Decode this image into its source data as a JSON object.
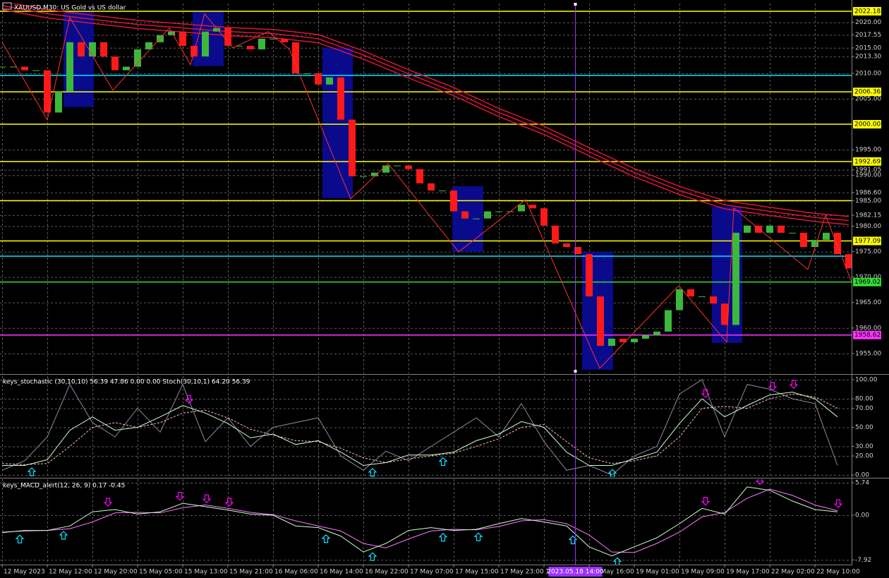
{
  "chart_data": [
    {
      "type": "candlestick",
      "title": "XAUUSD,M30: US Gold vs US dollar",
      "x": [
        0,
        4,
        8,
        12,
        16,
        20,
        24,
        28,
        32,
        36,
        40,
        44,
        48,
        52,
        56,
        60,
        64,
        68,
        72,
        76,
        80,
        84,
        88,
        92,
        96,
        100,
        104,
        108,
        112,
        116,
        120,
        124,
        128,
        132,
        136,
        140,
        144,
        148,
        152,
        156,
        160,
        164,
        168,
        172,
        176,
        180,
        184,
        188,
        192,
        196,
        200,
        204,
        208,
        212,
        216,
        220,
        224,
        228,
        232,
        236,
        240,
        244,
        248,
        252,
        256,
        260,
        264,
        268,
        272,
        276,
        280,
        284,
        288,
        292,
        296,
        300
      ],
      "values": [
        2011.3,
        2011.3,
        2010.6,
        2010.6,
        2002.3,
        2006.4,
        2016.1,
        2013.3,
        2016.1,
        2013.3,
        2010.6,
        2011.3,
        2014.7,
        2016.1,
        2017.5,
        2018.2,
        2015.4,
        2013.3,
        2018.2,
        2018.9,
        2015.4,
        2015.4,
        2014.7,
        2016.8,
        2016.8,
        2016.1,
        2010.0,
        2010.0,
        2007.8,
        2009.2,
        2000.9,
        1989.8,
        1989.8,
        1990.5,
        1991.9,
        1991.9,
        1991.2,
        1988.4,
        1987.0,
        1987.0,
        1982.9,
        1981.5,
        1981.5,
        1982.9,
        1982.9,
        1982.9,
        1984.2,
        1983.5,
        1980.1,
        1976.6,
        1975.9,
        1974.5,
        1966.2,
        1956.5,
        1957.9,
        1957.2,
        1957.9,
        1958.6,
        1959.3,
        1963.5,
        1967.6,
        1966.2,
        1966.2,
        1964.8,
        1960.6,
        1978.7,
        1980.1,
        1978.7,
        1980.1,
        1978.7,
        1978.7,
        1975.9,
        1977.3,
        1978.7,
        1974.5,
        1971.7
      ],
      "up_color": "#3cb83c",
      "down_color": "#ff1a1a",
      "ma_series": [
        {
          "color": "#dc143c",
          "x": [
            0,
            16,
            32,
            48,
            64,
            80,
            96,
            112,
            128,
            144,
            160,
            176,
            192,
            208,
            224,
            240,
            256,
            272,
            288,
            300
          ],
          "values": [
            2024.1,
            2022.5,
            2021.4,
            2020.4,
            2019.7,
            2019.0,
            2018.6,
            2017.6,
            2014.4,
            2010.7,
            2007.2,
            2003.1,
            1999.6,
            1995.4,
            1991.3,
            1987.8,
            1985.0,
            1983.7,
            1982.5,
            1981.9
          ]
        },
        {
          "color": "#dc143c",
          "x": [
            0,
            16,
            32,
            48,
            64,
            80,
            96,
            112,
            128,
            144,
            160,
            176,
            192,
            208,
            224,
            240,
            256,
            272,
            288,
            300
          ],
          "values": [
            2023.3,
            2021.7,
            2020.6,
            2019.6,
            2018.9,
            2018.2,
            2017.8,
            2016.8,
            2013.6,
            2009.9,
            2006.4,
            2002.3,
            1998.8,
            1994.6,
            1990.5,
            1987.0,
            1984.2,
            1982.9,
            1981.7,
            1981.1
          ]
        },
        {
          "color": "#dc143c",
          "x": [
            0,
            16,
            32,
            48,
            64,
            80,
            96,
            112,
            128,
            144,
            160,
            176,
            192,
            208,
            224,
            240,
            256,
            272,
            288,
            300
          ],
          "values": [
            2022.5,
            2020.9,
            2019.8,
            2018.8,
            2018.1,
            2017.4,
            2017.0,
            2016.0,
            2012.8,
            2009.1,
            2005.6,
            2001.5,
            1998.0,
            1993.8,
            1989.7,
            1986.2,
            1983.4,
            1982.1,
            1980.9,
            1980.3
          ]
        }
      ],
      "zigzag": {
        "color": "#ff3030",
        "x": [
          0,
          16,
          24,
          39.25,
          59.25,
          66.75,
          71.75,
          81.75,
          94.25,
          101.75,
          123.5,
          136.75,
          161.75,
          185.5,
          211.75,
          239.75,
          256.75,
          259.25,
          285.5,
          291.75,
          301
        ],
        "values": [
          2016.12,
          2000.87,
          2020.97,
          2006.69,
          2018.89,
          2011.68,
          2021.66,
          2015.01,
          2018.2,
          2014.73,
          1985.35,
          1992.28,
          1974.95,
          1985.21,
          1952.09,
          1968.3,
          1957.21,
          1983.55,
          1971.49,
          1982.16,
          1969.0
        ]
      },
      "zones": {
        "color": "#0a0a8c",
        "items": [
          {
            "x": [
              21.75,
              32.5
            ],
            "y": [
              2022.08,
              2003.37
            ]
          },
          {
            "x": [
              67.5,
              78.5
            ],
            "y": [
              2022.08,
              2011.41
            ]
          },
          {
            "x": [
              113.5,
              124.25
            ],
            "y": [
              2015.01,
              1985.49
            ]
          },
          {
            "x": [
              159.5,
              170.5
            ],
            "y": [
              1987.84,
              1974.95
            ]
          },
          {
            "x": [
              205.5,
              216.5
            ],
            "y": [
              1974.95,
              1951.81
            ]
          },
          {
            "x": [
              251.5,
              262.25
            ],
            "y": [
              1983.83,
              1957.08
            ]
          }
        ]
      },
      "levels": [
        {
          "value": 2022.18,
          "label": "2022.18",
          "color": "#ffff00"
        },
        {
          "value": 2009.6,
          "color": "#00e5ff"
        },
        {
          "value": 2006.36,
          "label": "2006.36",
          "color": "#ffff00"
        },
        {
          "value": 2000,
          "label": "2000.00",
          "color": "#ffff00"
        },
        {
          "value": 1992.69,
          "label": "1992.69",
          "color": "#ffff00"
        },
        {
          "value": 1985,
          "color": "#ffff00"
        },
        {
          "value": 1977.09,
          "label": "1977.09",
          "color": "#ffff00"
        },
        {
          "value": 1974.1,
          "color": "#00e5ff"
        },
        {
          "value": 1969.02,
          "label": "1969.02",
          "color": "#33dd33"
        },
        {
          "value": 1958.62,
          "label": "1958.62",
          "color": "#ff33ff"
        }
      ],
      "ylim": [
        1951.1,
        2023.7
      ],
      "yticks": [
        {
          "value": 2020,
          "label": "2020.00"
        },
        2017.55,
        {
          "value": 2015,
          "label": "2015.00"
        },
        {
          "value": 2013.3,
          "label": "2013.30"
        },
        {
          "value": 2010,
          "label": "2010.00"
        },
        {
          "value": 2005,
          "label": "2005.00"
        },
        {
          "value": 1995,
          "label": "1995.00"
        },
        1991.05,
        {
          "value": 1990,
          "label": "1990.00"
        },
        {
          "value": 1986.6,
          "label": "1986.60"
        },
        {
          "value": 1985,
          "label": "1985.00"
        },
        1982.15,
        {
          "value": 1980,
          "label": "1980.00"
        },
        {
          "value": 1975,
          "label": "1975.00"
        },
        {
          "value": 1970,
          "label": "1970.00"
        },
        {
          "value": 1965,
          "label": "1965.00"
        },
        {
          "value": 1960,
          "label": "1960.00"
        },
        {
          "value": 1955,
          "label": "1955.00"
        }
      ],
      "xlim": [
        -0.75,
        301
      ],
      "xticks": [
        {
          "value": 0,
          "label": "12 May 2023"
        },
        {
          "value": 16,
          "label": "12 May 12:00"
        },
        {
          "value": 32,
          "label": "12 May 20:00"
        },
        {
          "value": 48,
          "label": "15 May 05:00"
        },
        {
          "value": 64,
          "label": "15 May 13:00"
        },
        {
          "value": 80,
          "label": "15 May 21:00"
        },
        {
          "value": 96,
          "label": "16 May 06:00"
        },
        {
          "value": 112,
          "label": "16 May 14:00"
        },
        {
          "value": 128,
          "label": "16 May 22:00"
        },
        {
          "value": 144,
          "label": "17 May 07:00"
        },
        {
          "value": 160,
          "label": "17 May 15:00"
        },
        {
          "value": 176,
          "label": "17 May 23:00"
        },
        {
          "value": 192,
          "label": "18 May 08:00"
        },
        {
          "value": 208,
          "label": "18 May 16:00"
        },
        {
          "value": 224,
          "label": "19 May 01:00"
        },
        {
          "value": 240,
          "label": "19 May 09:00"
        },
        {
          "value": 256,
          "label": "19 May 17:00"
        },
        {
          "value": 272,
          "label": "22 May 02:00"
        },
        {
          "value": 288,
          "label": "22 May 10:00"
        }
      ],
      "crosshair": {
        "value": 203,
        "label": "2023.05.18 14:00",
        "color": "#9b30ff"
      },
      "grid": true
    },
    {
      "type": "line",
      "title": "keys_stochastic (30,10,10) 56.39 47.86 0.00 0.00 Stoch(30,10,1) 64.20 56.39",
      "x": [
        0,
        8,
        16,
        24,
        32,
        40,
        48,
        56,
        64,
        72,
        80,
        88,
        96,
        104,
        112,
        120,
        128,
        136,
        144,
        152,
        160,
        168,
        176,
        184,
        192,
        200,
        208,
        216,
        224,
        232,
        240,
        248,
        256,
        264,
        272,
        280,
        288,
        296
      ],
      "series": [
        {
          "color": "#ccffcc",
          "values": [
            10,
            10,
            16,
            47,
            61,
            47,
            50,
            61,
            73,
            65,
            54,
            39,
            43,
            32,
            36,
            24,
            10,
            13,
            21,
            21,
            24,
            36,
            43,
            56,
            50,
            24,
            10,
            10,
            17,
            24,
            54,
            80,
            61,
            73,
            84,
            87,
            80,
            61
          ]
        },
        {
          "color": "#ffb6c1",
          "dashed": true,
          "values": [
            12,
            11,
            12,
            30,
            50,
            55,
            50,
            55,
            65,
            68,
            60,
            48,
            42,
            36,
            35,
            28,
            18,
            13,
            17,
            20,
            23,
            30,
            38,
            50,
            53,
            35,
            18,
            12,
            15,
            20,
            40,
            70,
            72,
            70,
            80,
            85,
            82,
            70
          ]
        },
        {
          "color": "#8c8ca0",
          "values": [
            5,
            15,
            40,
            95,
            55,
            40,
            70,
            45,
            95,
            35,
            60,
            30,
            50,
            55,
            60,
            20,
            5,
            25,
            15,
            30,
            45,
            60,
            40,
            75,
            35,
            5,
            10,
            0,
            20,
            30,
            85,
            100,
            40,
            95,
            90,
            80,
            75,
            10
          ]
        }
      ],
      "up_arrows": [
        10.5,
        131.25,
        156.25,
        216.25
      ],
      "down_arrows": [
        66.25,
        249.25,
        273,
        280.5
      ],
      "up_color": "#00e5ff",
      "down_color": "#ff00ff",
      "ylim": [
        -2.2,
        103.7
      ],
      "yticks": [
        {
          "value": 100,
          "label": "100.00"
        },
        {
          "value": 80,
          "label": "80.00"
        },
        {
          "value": 70,
          "label": "70.00"
        },
        {
          "value": 50,
          "label": "50.00"
        },
        {
          "value": 30,
          "label": "30.00"
        },
        {
          "value": 20,
          "label": "20.00"
        },
        {
          "value": 0,
          "label": "0.00"
        }
      ],
      "grid": true
    },
    {
      "type": "line",
      "title": "keys_MACD_alert(12, 26, 9) 0.17 -0.45",
      "x": [
        0,
        8,
        16,
        24,
        32,
        40,
        48,
        56,
        64,
        72,
        80,
        88,
        96,
        104,
        112,
        120,
        128,
        136,
        144,
        152,
        160,
        168,
        176,
        184,
        192,
        200,
        208,
        216,
        224,
        232,
        240,
        248,
        256,
        264,
        272,
        280,
        288,
        296
      ],
      "series": [
        {
          "color": "#ccffcc",
          "values": [
            -3.1,
            -2.7,
            -2.7,
            -1.9,
            0.6,
            1.0,
            0.2,
            0.6,
            2.1,
            1.5,
            0.9,
            0.2,
            0,
            -1.9,
            -2.2,
            -3.7,
            -6.5,
            -5.0,
            -2.7,
            -2.2,
            -2.7,
            -2.5,
            -1.5,
            -0.6,
            -1.2,
            -1.9,
            -5.6,
            -7.2,
            -5.6,
            -4.0,
            -1.5,
            1.2,
            0.2,
            5.0,
            4.4,
            2.5,
            1.0,
            0.6
          ]
        },
        {
          "color": "#ff77ff",
          "values": [
            -3.0,
            -2.8,
            -2.7,
            -2.4,
            -1.2,
            0.4,
            0.5,
            0.4,
            1.3,
            1.8,
            1.2,
            0.5,
            0.1,
            -1.0,
            -1.9,
            -2.8,
            -5.0,
            -5.8,
            -4.2,
            -2.8,
            -2.5,
            -2.6,
            -2.0,
            -1.0,
            -0.8,
            -1.5,
            -3.5,
            -6.5,
            -6.6,
            -5.0,
            -3.0,
            -0.3,
            0.5,
            3.0,
            4.6,
            3.5,
            1.8,
            0.8
          ]
        }
      ],
      "up_arrows": [
        6.25,
        21.75,
        114.75,
        131.25,
        156.25,
        168.75,
        202.25,
        218
      ],
      "down_arrows": [
        37.5,
        63,
        72.5,
        80.5,
        249.25,
        268.5,
        296.25
      ],
      "up_color": "#00e5ff",
      "down_color": "#ff00ff",
      "ylim": [
        -8.74,
        6.36
      ],
      "yticks": [
        5.74,
        {
          "value": 0,
          "label": "0.00"
        },
        -7.92
      ],
      "grid": true
    }
  ]
}
